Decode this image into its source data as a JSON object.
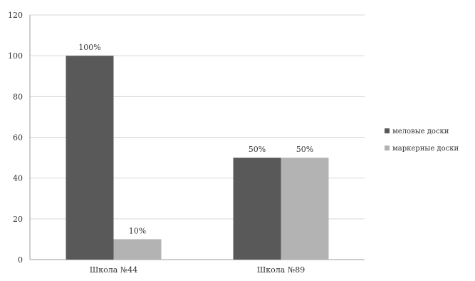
{
  "chart_data": {
    "type": "bar",
    "title": "",
    "xlabel": "",
    "ylabel": "",
    "categories": [
      "Школа №44",
      "Школа №89"
    ],
    "series": [
      {
        "name": "меловые доски",
        "color": "#595959",
        "values": [
          100,
          50
        ],
        "labels": [
          "100%",
          "50%"
        ]
      },
      {
        "name": "маркерные доски",
        "color": "#b3b3b3",
        "values": [
          10,
          50
        ],
        "labels": [
          "10%",
          "50%"
        ]
      }
    ],
    "ylim": [
      0,
      120
    ],
    "yticks": [
      0,
      20,
      40,
      60,
      80,
      100,
      120
    ],
    "grid": true,
    "legend": "right"
  }
}
